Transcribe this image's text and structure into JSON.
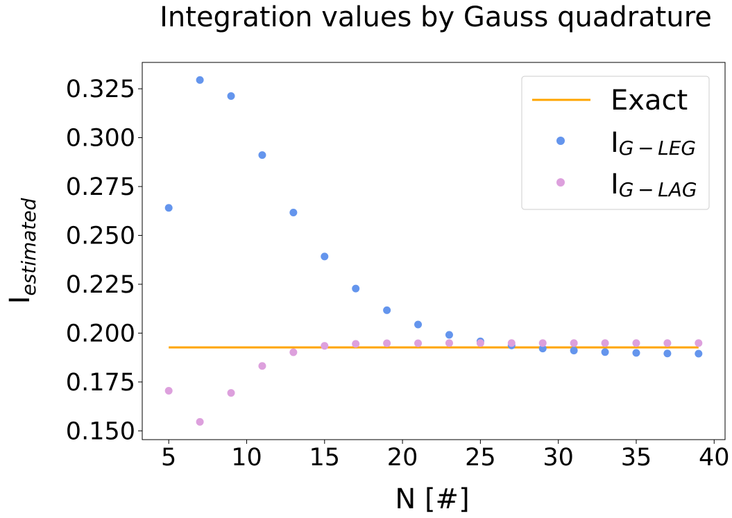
{
  "chart_data": {
    "type": "scatter",
    "title": "Integration values by Gauss quadrature",
    "xlabel": "N [#]",
    "ylabel": {
      "main": "I",
      "sub": "estimated"
    },
    "xlim": [
      3.3,
      40.7
    ],
    "ylim": [
      0.1455,
      0.3385
    ],
    "xticks": [
      5,
      10,
      15,
      20,
      25,
      30,
      35,
      40
    ],
    "yticks": [
      "0.150",
      "0.175",
      "0.200",
      "0.225",
      "0.250",
      "0.275",
      "0.300",
      "0.325"
    ],
    "grid": false,
    "legend_position": "top-right",
    "exact": {
      "name": "Exact",
      "color": "#ffa500",
      "value": 0.1927,
      "x_range": [
        5,
        39
      ]
    },
    "series": [
      {
        "name": {
          "main": "I",
          "sub": "G − LEG"
        },
        "color": "#6495ed",
        "x": [
          5,
          7,
          9,
          11,
          13,
          15,
          17,
          19,
          21,
          23,
          25,
          27,
          29,
          31,
          33,
          35,
          37,
          39
        ],
        "values": [
          0.2641,
          0.3295,
          0.3213,
          0.2911,
          0.2617,
          0.2392,
          0.2228,
          0.2117,
          0.2044,
          0.1991,
          0.1958,
          0.1937,
          0.1921,
          0.1911,
          0.1903,
          0.1899,
          0.1896,
          0.1895
        ]
      },
      {
        "name": {
          "main": "I",
          "sub": "G − LAG"
        },
        "color": "#dda0dd",
        "x": [
          5,
          7,
          9,
          11,
          13,
          15,
          17,
          19,
          21,
          23,
          25,
          27,
          29,
          31,
          33,
          35,
          37,
          39
        ],
        "values": [
          0.1705,
          0.1546,
          0.1694,
          0.1832,
          0.1902,
          0.1935,
          0.1945,
          0.1948,
          0.1948,
          0.1949,
          0.1949,
          0.1949,
          0.1949,
          0.1949,
          0.1949,
          0.1949,
          0.1949,
          0.1949
        ]
      }
    ]
  }
}
